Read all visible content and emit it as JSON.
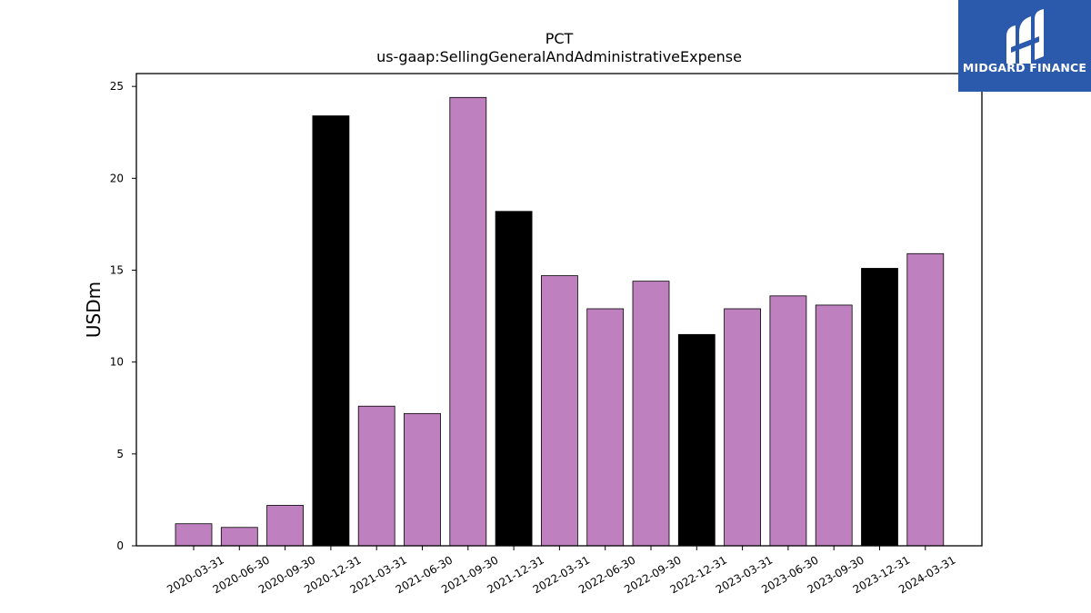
{
  "chart_data": {
    "type": "bar",
    "title": "PCT",
    "subtitle": "us-gaap:SellingGeneralAndAdministrativeExpense",
    "ylabel": "USDm",
    "xlabel": "",
    "ylim": [
      0,
      25.7
    ],
    "yticks": [
      0,
      5,
      10,
      15,
      20,
      25
    ],
    "grid": false,
    "categories": [
      "2020-03-31",
      "2020-06-30",
      "2020-09-30",
      "2020-12-31",
      "2021-03-31",
      "2021-06-30",
      "2021-09-30",
      "2021-12-31",
      "2022-03-31",
      "2022-06-30",
      "2022-09-30",
      "2022-12-31",
      "2023-03-31",
      "2023-06-30",
      "2023-09-30",
      "2023-12-31",
      "2024-03-31"
    ],
    "values": [
      1.2,
      1.0,
      2.2,
      23.4,
      7.6,
      7.2,
      24.4,
      18.2,
      14.7,
      12.9,
      14.4,
      11.5,
      12.9,
      13.6,
      13.1,
      15.1,
      15.9
    ],
    "bar_colors": [
      "#bf80bf",
      "#bf80bf",
      "#bf80bf",
      "#000000",
      "#bf80bf",
      "#bf80bf",
      "#bf80bf",
      "#000000",
      "#bf80bf",
      "#bf80bf",
      "#bf80bf",
      "#000000",
      "#bf80bf",
      "#bf80bf",
      "#bf80bf",
      "#000000",
      "#bf80bf"
    ],
    "colors": {
      "quarter": "#bf80bf",
      "year_end": "#000000"
    }
  },
  "logo": {
    "text": "MIDGARD FINANCE",
    "background": "#2b5aad"
  }
}
